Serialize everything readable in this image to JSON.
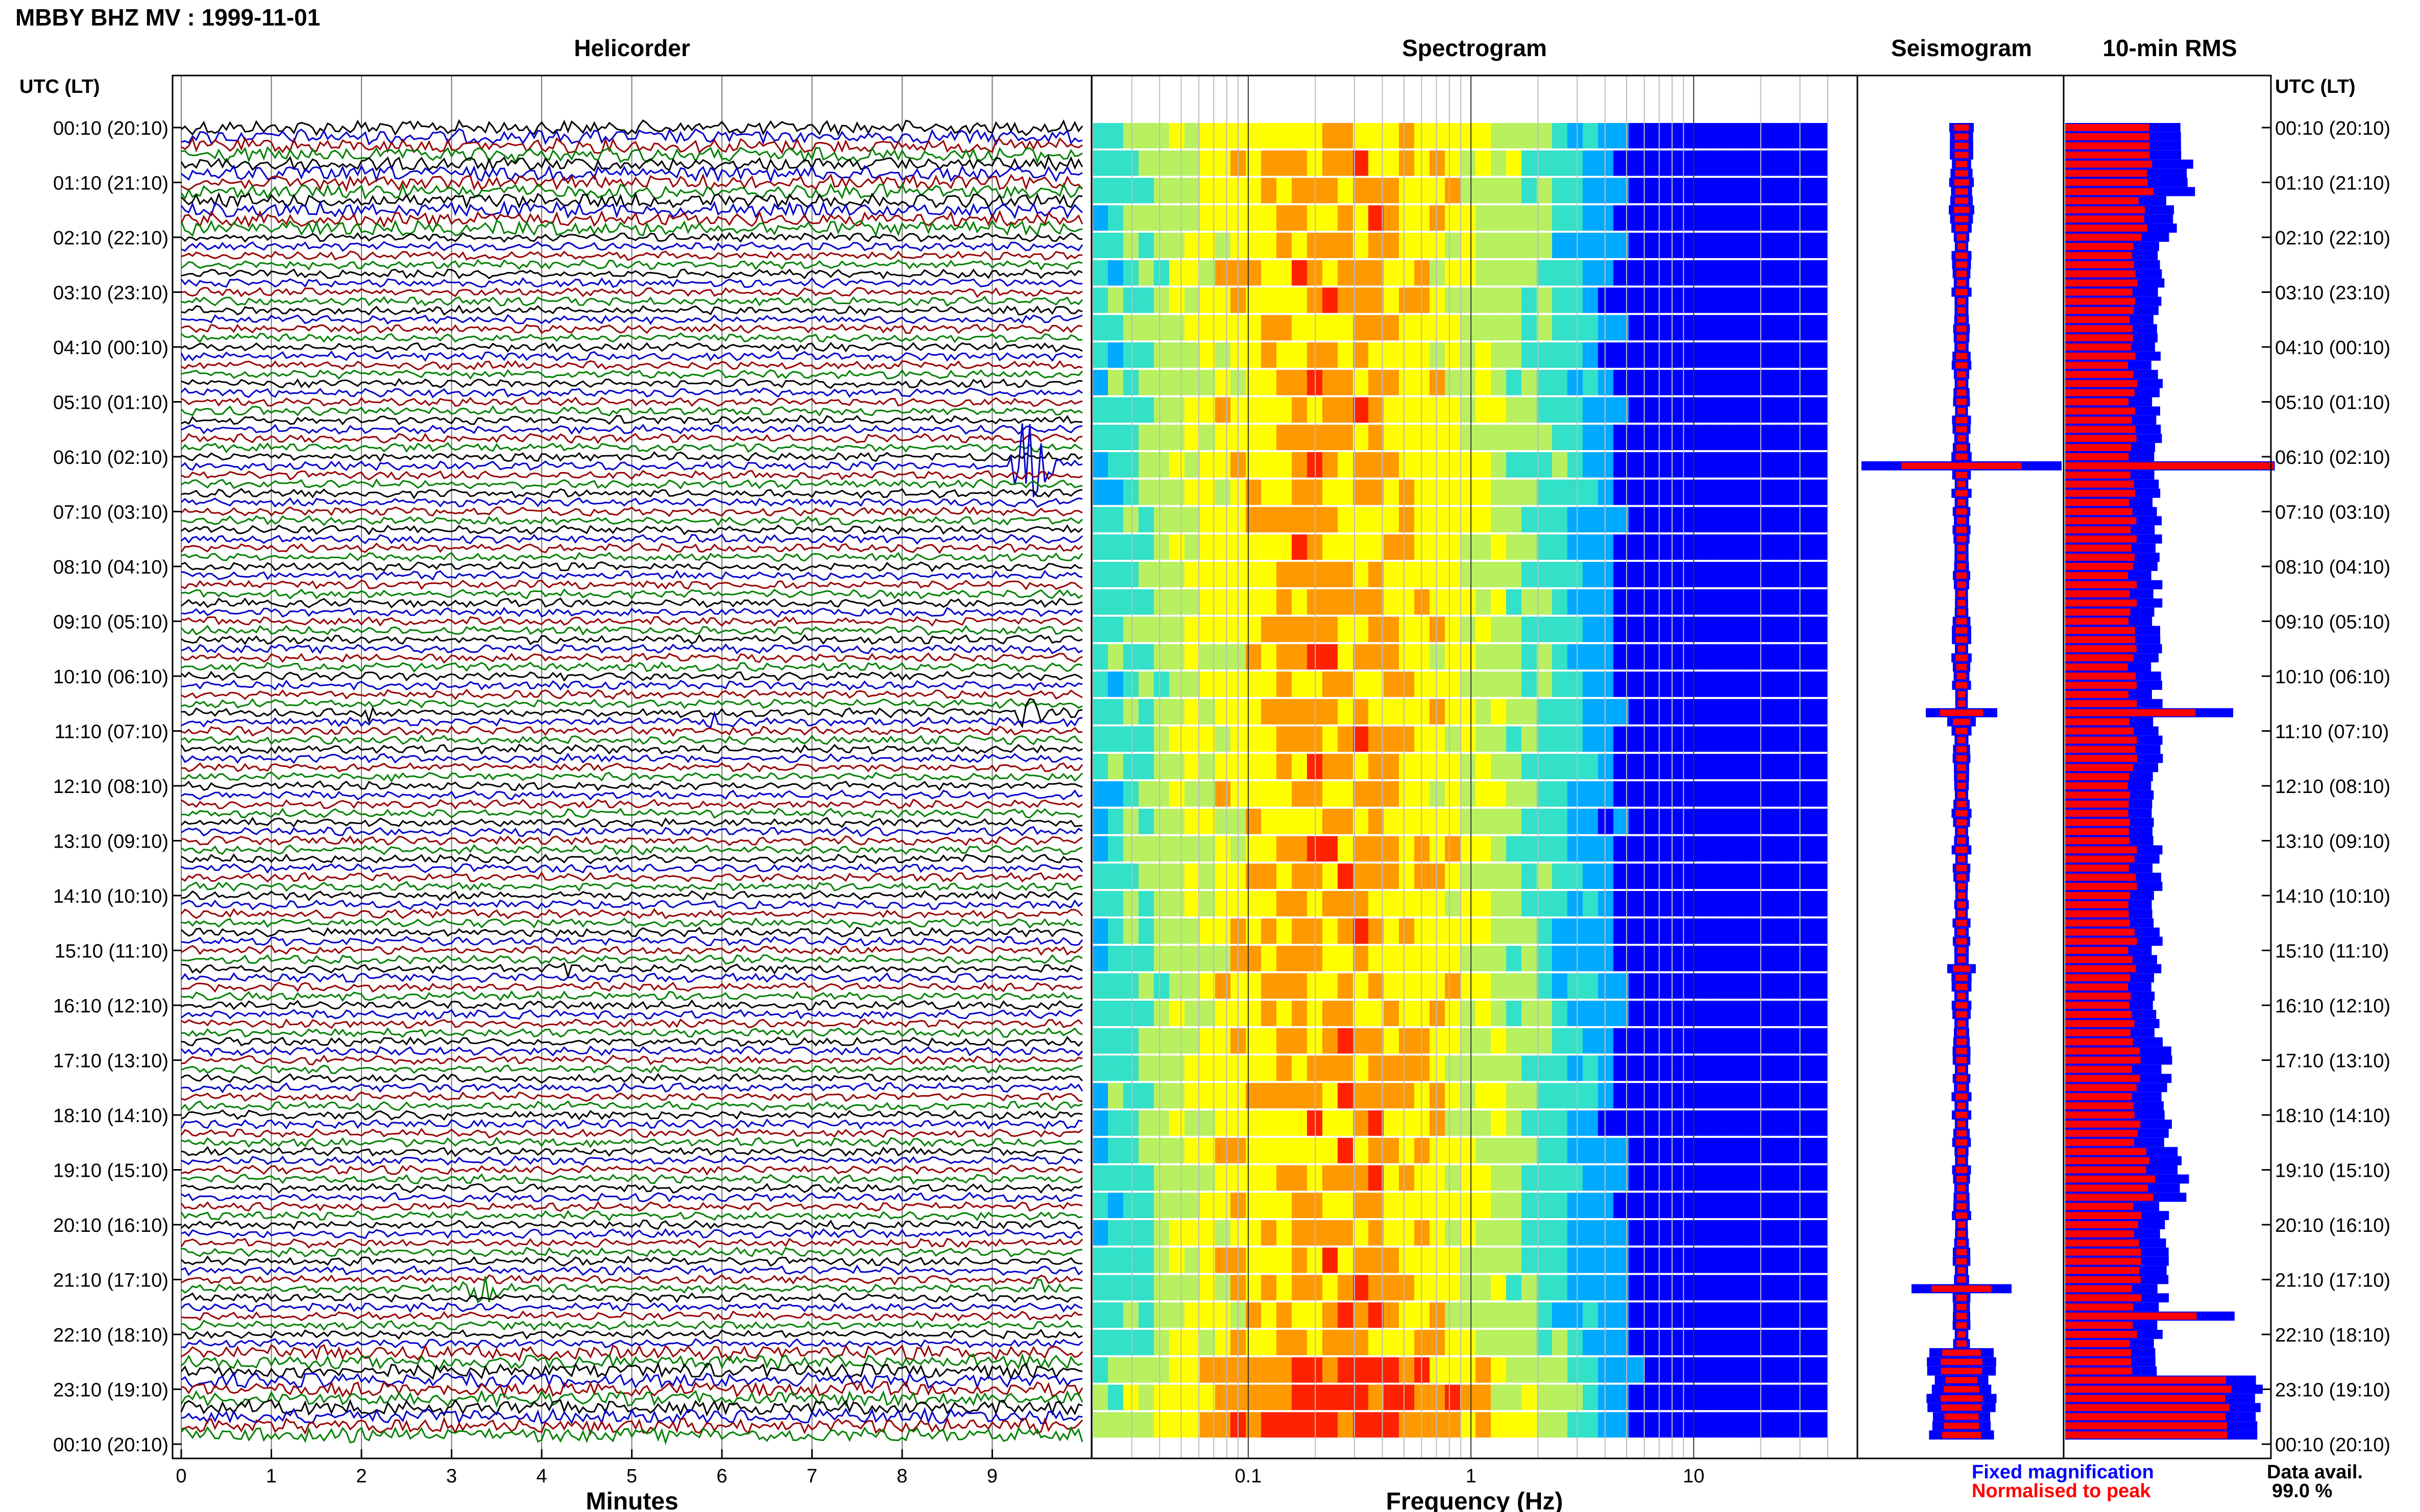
{
  "header": {
    "station_title": "MBBY BHZ MV : 1999-11-01"
  },
  "panels": {
    "helicorder_title": "Helicorder",
    "spectrogram_title": "Spectrogram",
    "seismogram_title": "Seismogram",
    "rms_title": "10-min RMS"
  },
  "axes": {
    "utc_label": "UTC (LT)",
    "minutes_label": "Minutes",
    "frequency_label": "Frequency (Hz)",
    "minute_ticks": [
      "0",
      "1",
      "2",
      "3",
      "4",
      "5",
      "6",
      "7",
      "8",
      "9"
    ],
    "frequency_ticks": [
      "0.1",
      "1",
      "10"
    ]
  },
  "legend": {
    "fixed_label": "Fixed magnification",
    "fixed_color": "#0000ff",
    "normalised_label": "Normalised to peak",
    "normalised_color": "#ff0000"
  },
  "availability": {
    "label": "Data avail.",
    "value": "99.0 %"
  },
  "chart_data": {
    "type": "heatmap",
    "time_labels": [
      "00:10 (20:10)",
      "01:10 (21:10)",
      "02:10 (22:10)",
      "03:10 (23:10)",
      "04:10 (00:10)",
      "05:10 (01:10)",
      "06:10 (02:10)",
      "07:10 (03:10)",
      "08:10 (04:10)",
      "09:10 (05:10)",
      "10:10 (06:10)",
      "11:10 (07:10)",
      "12:10 (08:10)",
      "13:10 (09:10)",
      "14:10 (10:10)",
      "15:10 (11:10)",
      "16:10 (12:10)",
      "17:10 (13:10)",
      "18:10 (14:10)",
      "19:10 (15:10)",
      "20:10 (16:10)",
      "21:10 (17:10)",
      "22:10 (18:10)",
      "23:10 (19:10)",
      "00:10 (20:10)"
    ],
    "minutes_range": [
      0,
      10
    ],
    "frequency_range_hz": [
      0.02,
      40
    ],
    "frequency_scale": "log",
    "helicorder_colors": [
      "#000000",
      "#0000cc",
      "#990000",
      "#008000"
    ],
    "helicorder_events": [
      {
        "row": 37,
        "minute": 9.4,
        "amp": 7,
        "color": "#990000"
      },
      {
        "row": 64,
        "minute": 2.1,
        "amp": 1.3,
        "color": "#0000cc"
      },
      {
        "row": 64,
        "minute": 9.4,
        "amp": 2.5,
        "color": "#0000cc"
      },
      {
        "row": 65,
        "minute": 5.9,
        "amp": 1.0,
        "color": "#008000"
      },
      {
        "row": 92,
        "minute": 4.3,
        "amp": 1.0,
        "color": "#008000"
      },
      {
        "row": 127,
        "minute": 3.3,
        "amp": 3.5,
        "color": "#0000cc"
      },
      {
        "row": 127,
        "minute": 9.5,
        "amp": 1.0,
        "color": "#0000cc"
      }
    ],
    "rms_blocks": [
      {
        "start": 0,
        "blue": 0.55,
        "red": 0.4
      },
      {
        "start": 4,
        "blue": 0.62,
        "red": 0.42
      },
      {
        "start": 8,
        "blue": 0.52,
        "red": 0.38
      },
      {
        "start": 12,
        "blue": 0.48,
        "red": 0.35
      },
      {
        "start": 20,
        "blue": 0.45,
        "red": 0.33
      },
      {
        "start": 36,
        "blue": 0.46,
        "red": 0.33
      },
      {
        "start": 37,
        "blue": 1.0,
        "red": 1.0
      },
      {
        "start": 38,
        "blue": 0.45,
        "red": 0.33
      },
      {
        "start": 64,
        "blue": 0.85,
        "red": 0.66
      },
      {
        "start": 65,
        "blue": 0.45,
        "red": 0.33
      },
      {
        "start": 100,
        "blue": 0.5,
        "red": 0.35
      },
      {
        "start": 112,
        "blue": 0.58,
        "red": 0.42
      },
      {
        "start": 118,
        "blue": 0.48,
        "red": 0.35
      },
      {
        "start": 130,
        "blue": 0.8,
        "red": 0.62
      },
      {
        "start": 131,
        "blue": 0.45,
        "red": 0.33
      },
      {
        "start": 137,
        "blue": 0.95,
        "red": 0.8
      },
      {
        "start": 144,
        "blue": 0.55,
        "red": 0.4
      }
    ]
  }
}
